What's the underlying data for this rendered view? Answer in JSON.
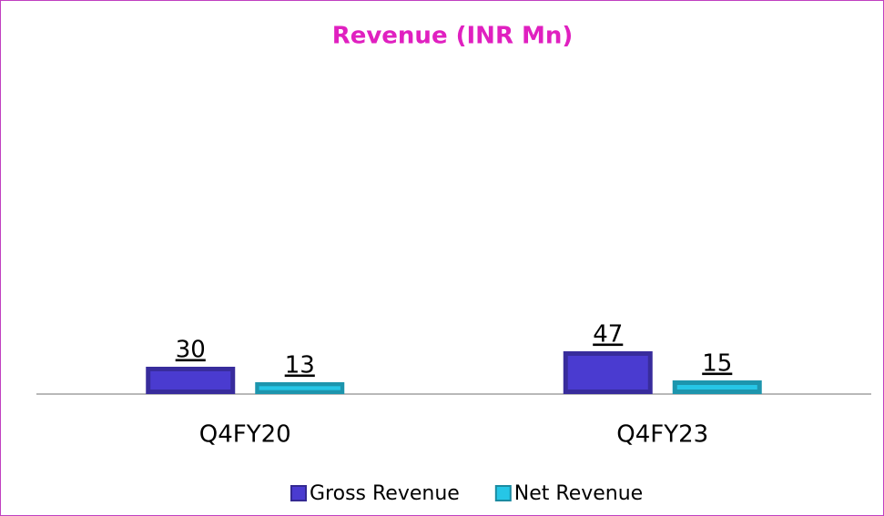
{
  "chart_data": {
    "type": "bar",
    "title": "Revenue (INR Mn)",
    "categories": [
      "Q4FY20",
      "Q4FY23"
    ],
    "series": [
      {
        "name": "Gross Revenue",
        "color": "#4a3bd0",
        "values": [
          30,
          47
        ]
      },
      {
        "name": "Net Revenue",
        "color": "#26c6e6",
        "values": [
          13,
          15
        ]
      }
    ],
    "legend": "bottom"
  }
}
